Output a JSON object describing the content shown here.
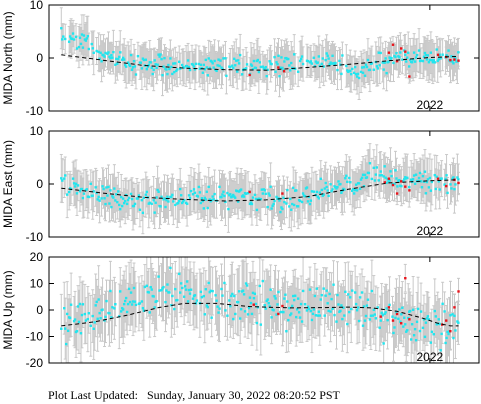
{
  "footer": {
    "label": "Plot Last Updated:",
    "date": "Sunday, January 30, 2022 08:20:52 PST"
  },
  "colors": {
    "early": "#22e5ee",
    "recent": "#e8141c",
    "error_bar": "#c8c8c8",
    "trend": "#000000"
  },
  "chart_data": [
    {
      "type": "scatter",
      "ylabel": "MIDA North (mm)",
      "x_tick_label": "2022",
      "x_tick_position": 2022.0,
      "xlim": [
        2017.35,
        2022.6
      ],
      "ylim": [
        -10,
        10
      ],
      "yticks": [
        10,
        0,
        -10
      ],
      "error_bars": true,
      "trend_line": {
        "style": "dashed",
        "points": [
          [
            2017.5,
            0.6
          ],
          [
            2018.0,
            -0.4
          ],
          [
            2018.5,
            -1.4
          ],
          [
            2019.0,
            -1.9
          ],
          [
            2019.5,
            -2.2
          ],
          [
            2020.0,
            -2.3
          ],
          [
            2020.5,
            -1.8
          ],
          [
            2021.0,
            -1.2
          ],
          [
            2021.5,
            -0.5
          ],
          [
            2022.0,
            0.1
          ],
          [
            2022.35,
            0.3
          ]
        ]
      },
      "series": [
        {
          "color_key": "early",
          "anchors": [
            [
              2017.5,
              3.8
            ],
            [
              2017.65,
              4.2
            ],
            [
              2017.8,
              2.5
            ],
            [
              2018.0,
              0.5
            ],
            [
              2018.3,
              -0.8
            ],
            [
              2018.6,
              -1.3
            ],
            [
              2019.0,
              -1.5
            ],
            [
              2019.5,
              -1.6
            ],
            [
              2020.0,
              -1.8
            ],
            [
              2020.3,
              -1.2
            ],
            [
              2020.5,
              -0.9
            ],
            [
              2020.8,
              -0.5
            ],
            [
              2021.0,
              -1.6
            ],
            [
              2021.1,
              -3.8
            ],
            [
              2021.2,
              -2.0
            ],
            [
              2021.35,
              -0.8
            ],
            [
              2021.6,
              0.0
            ],
            [
              2022.0,
              0.3
            ],
            [
              2022.35,
              0.0
            ]
          ],
          "spread": 0.9,
          "error": 3.2
        },
        {
          "color_key": "recent",
          "points": [
            [
              2019.8,
              -3.2
            ],
            [
              2020.15,
              -1.8
            ],
            [
              2020.22,
              -2.5
            ],
            [
              2021.5,
              1.0
            ],
            [
              2021.55,
              2.5
            ],
            [
              2021.6,
              -0.6
            ],
            [
              2021.65,
              1.8
            ],
            [
              2021.7,
              1.2
            ],
            [
              2021.75,
              -3.5
            ],
            [
              2022.1,
              0.6
            ],
            [
              2022.2,
              0.2
            ],
            [
              2022.25,
              -0.4
            ],
            [
              2022.3,
              -0.3
            ],
            [
              2022.35,
              -0.5
            ]
          ],
          "error": 1.5
        }
      ]
    },
    {
      "type": "scatter",
      "ylabel": "MIDA East (mm)",
      "x_tick_label": "2022",
      "x_tick_position": 2022.0,
      "xlim": [
        2017.35,
        2022.6
      ],
      "ylim": [
        -10,
        10
      ],
      "yticks": [
        10,
        0,
        -10
      ],
      "error_bars": true,
      "trend_line": {
        "style": "dashed",
        "points": [
          [
            2017.5,
            -0.8
          ],
          [
            2018.0,
            -1.7
          ],
          [
            2018.5,
            -2.5
          ],
          [
            2019.0,
            -2.9
          ],
          [
            2019.5,
            -3.2
          ],
          [
            2020.0,
            -3.0
          ],
          [
            2020.5,
            -2.4
          ],
          [
            2021.0,
            -1.0
          ],
          [
            2021.5,
            0.2
          ],
          [
            2022.0,
            0.6
          ],
          [
            2022.35,
            0.8
          ]
        ]
      },
      "series": [
        {
          "color_key": "early",
          "anchors": [
            [
              2017.5,
              0.2
            ],
            [
              2017.8,
              -1.5
            ],
            [
              2018.1,
              -2.2
            ],
            [
              2018.4,
              -3.8
            ],
            [
              2018.7,
              -3.2
            ],
            [
              2019.0,
              -2.5
            ],
            [
              2019.4,
              -2.8
            ],
            [
              2019.7,
              -2.3
            ],
            [
              2020.0,
              -2.8
            ],
            [
              2020.2,
              -3.8
            ],
            [
              2020.5,
              -2.5
            ],
            [
              2020.8,
              -0.6
            ],
            [
              2021.1,
              -0.4
            ],
            [
              2021.2,
              1.5
            ],
            [
              2021.35,
              2.0
            ],
            [
              2021.6,
              0.8
            ],
            [
              2022.0,
              0.5
            ],
            [
              2022.35,
              0.6
            ]
          ],
          "spread": 1.0,
          "error": 3.5
        },
        {
          "color_key": "recent",
          "points": [
            [
              2019.8,
              -1.5
            ],
            [
              2020.2,
              -1.8
            ],
            [
              2021.45,
              0.3
            ],
            [
              2021.5,
              1.0
            ],
            [
              2021.55,
              -0.2
            ],
            [
              2021.6,
              -1.8
            ],
            [
              2021.65,
              0.5
            ],
            [
              2021.7,
              -0.5
            ],
            [
              2021.75,
              -1.2
            ],
            [
              2022.1,
              1.0
            ],
            [
              2022.2,
              -0.4
            ],
            [
              2022.3,
              0.8
            ],
            [
              2022.35,
              0.2
            ]
          ],
          "error": 1.8
        }
      ]
    },
    {
      "type": "scatter",
      "ylabel": "MIDA Up (mm)",
      "x_tick_label": "2022",
      "x_tick_position": 2022.0,
      "xlim": [
        2017.35,
        2022.6
      ],
      "ylim": [
        -20,
        20
      ],
      "yticks": [
        20,
        10,
        0,
        -10,
        -20
      ],
      "error_bars": true,
      "trend_line": {
        "style": "dashed",
        "points": [
          [
            2017.5,
            -6.0
          ],
          [
            2017.9,
            -4.5
          ],
          [
            2018.3,
            -2.0
          ],
          [
            2018.7,
            1.0
          ],
          [
            2019.0,
            2.5
          ],
          [
            2019.4,
            2.5
          ],
          [
            2019.8,
            1.3
          ],
          [
            2020.3,
            0.8
          ],
          [
            2020.7,
            0.9
          ],
          [
            2021.0,
            1.1
          ],
          [
            2021.3,
            0.8
          ],
          [
            2021.6,
            -0.5
          ],
          [
            2021.9,
            -3.0
          ],
          [
            2022.1,
            -5.0
          ],
          [
            2022.25,
            -6.0
          ],
          [
            2022.35,
            -6.0
          ]
        ]
      },
      "series": [
        {
          "color_key": "early",
          "anchors": [
            [
              2017.5,
              -6.0
            ],
            [
              2017.8,
              -5.0
            ],
            [
              2018.1,
              0.5
            ],
            [
              2018.4,
              3.0
            ],
            [
              2018.7,
              7.5
            ],
            [
              2019.0,
              8.5
            ],
            [
              2019.3,
              5.0
            ],
            [
              2019.6,
              2.5
            ],
            [
              2019.9,
              3.5
            ],
            [
              2020.2,
              -0.5
            ],
            [
              2020.5,
              1.5
            ],
            [
              2020.8,
              2.5
            ],
            [
              2021.0,
              2.0
            ],
            [
              2021.3,
              -1.0
            ],
            [
              2021.6,
              -2.0
            ],
            [
              2021.8,
              -4.0
            ],
            [
              2022.0,
              -6.0
            ],
            [
              2022.35,
              -5.0
            ]
          ],
          "spread": 4.0,
          "error": 10.0
        },
        {
          "color_key": "recent",
          "points": [
            [
              2019.85,
              2.0
            ],
            [
              2020.15,
              -1.5
            ],
            [
              2020.2,
              1.5
            ],
            [
              2021.4,
              -2.5
            ],
            [
              2021.5,
              1.0
            ],
            [
              2021.55,
              -4.0
            ],
            [
              2021.6,
              -1.5
            ],
            [
              2021.65,
              -5.0
            ],
            [
              2021.7,
              12.0
            ],
            [
              2021.75,
              -3.5
            ],
            [
              2022.15,
              -5.5
            ],
            [
              2022.2,
              -4.0
            ],
            [
              2022.25,
              -8.0
            ],
            [
              2022.3,
              1.0
            ],
            [
              2022.35,
              7.0
            ]
          ],
          "error": 6.0
        }
      ]
    }
  ]
}
